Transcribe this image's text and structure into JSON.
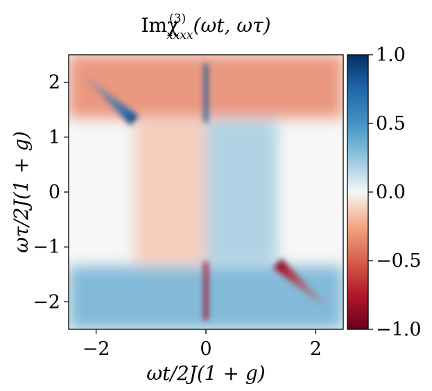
{
  "chart_data": {
    "type": "heatmap",
    "title": "Imχ",
    "title_sub": "xxxx",
    "title_sup": "(3)",
    "title_args": "(ωt, ωτ)",
    "xlabel": "ωt/2J(1 + g)",
    "ylabel": "ωτ/2J(1 + g)",
    "xlim": [
      -2.5,
      2.5
    ],
    "ylim": [
      -2.5,
      2.5
    ],
    "x_ticks": [
      -2,
      0,
      2
    ],
    "x_tick_labels": [
      "−2",
      "0",
      "2"
    ],
    "y_ticks": [
      -2,
      -1,
      0,
      1,
      2
    ],
    "y_tick_labels": [
      "−2",
      "−1",
      "0",
      "1",
      "2"
    ],
    "colorbar": {
      "colormap": "RdBu",
      "range": [
        -1.0,
        1.0
      ],
      "ticks": [
        -1.0,
        -0.5,
        0.0,
        0.5,
        1.0
      ],
      "tick_labels": [
        "−1.0",
        "−0.5",
        "0.0",
        "0.5",
        "1.0"
      ],
      "low_color": "#67001f",
      "mid_color": "#f7f7f7",
      "high_color": "#053061"
    },
    "features": [
      {
        "name": "positive-diagonal-streak",
        "from": [
          -2.2,
          2.1
        ],
        "to": [
          -1.3,
          1.3
        ],
        "value": 1.0
      },
      {
        "name": "negative-diagonal-streak",
        "from": [
          1.3,
          -1.3
        ],
        "to": [
          2.2,
          -2.1
        ],
        "value": -1.0
      },
      {
        "name": "positive-vertical-feature",
        "from": [
          0.0,
          1.3
        ],
        "to": [
          0.0,
          2.3
        ],
        "value": 0.8
      },
      {
        "name": "negative-vertical-feature",
        "from": [
          0.0,
          -1.3
        ],
        "to": [
          0.0,
          -2.3
        ],
        "value": -0.8
      },
      {
        "name": "weak-top-band",
        "from": [
          -2.5,
          1.35
        ],
        "to": [
          2.5,
          2.5
        ],
        "value": -0.12
      },
      {
        "name": "weak-bottom-band",
        "from": [
          -2.5,
          -2.5
        ],
        "to": [
          2.5,
          -1.35
        ],
        "value": 0.12
      },
      {
        "name": "center-left-region",
        "from": [
          -1.3,
          -1.3
        ],
        "to": [
          0.0,
          1.3
        ],
        "value": -0.05
      },
      {
        "name": "center-right-region",
        "from": [
          0.0,
          -1.3
        ],
        "to": [
          1.3,
          1.3
        ],
        "value": 0.07
      }
    ]
  }
}
